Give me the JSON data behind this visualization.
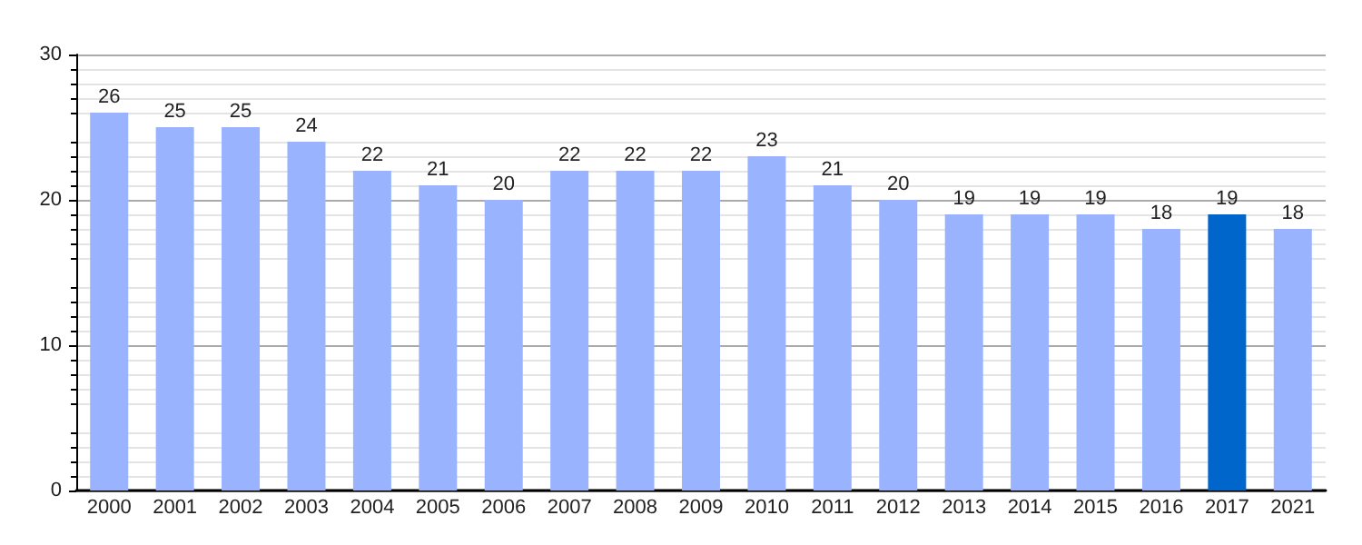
{
  "chart_data": {
    "type": "bar",
    "categories": [
      "2000",
      "2001",
      "2002",
      "2003",
      "2004",
      "2005",
      "2006",
      "2007",
      "2008",
      "2009",
      "2010",
      "2011",
      "2012",
      "2013",
      "2014",
      "2015",
      "2016",
      "2017",
      "2021"
    ],
    "values": [
      26,
      25,
      25,
      24,
      22,
      21,
      20,
      22,
      22,
      22,
      23,
      21,
      20,
      19,
      19,
      19,
      18,
      19,
      18
    ],
    "colors": [
      "#99b3ff",
      "#99b3ff",
      "#99b3ff",
      "#99b3ff",
      "#99b3ff",
      "#99b3ff",
      "#99b3ff",
      "#99b3ff",
      "#99b3ff",
      "#99b3ff",
      "#99b3ff",
      "#99b3ff",
      "#99b3ff",
      "#99b3ff",
      "#99b3ff",
      "#99b3ff",
      "#99b3ff",
      "#0066cc",
      "#99b3ff"
    ],
    "ylim": [
      0,
      30
    ],
    "yticks": [
      0,
      10,
      20,
      30
    ],
    "grid": "y",
    "data_labels": true
  }
}
